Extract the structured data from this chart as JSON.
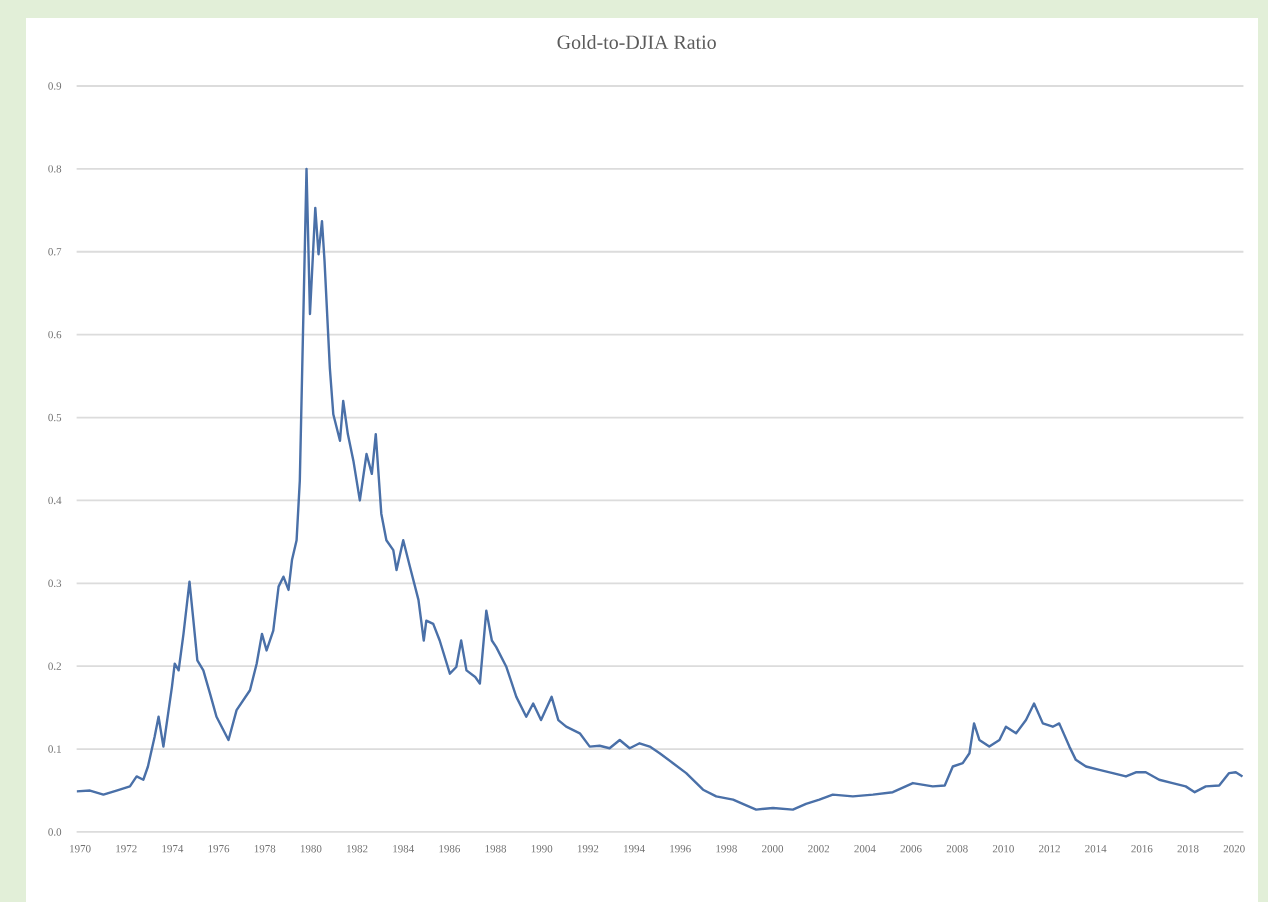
{
  "chart_data": {
    "type": "line",
    "title": "Gold-to-DJIA Ratio",
    "color": "#4a70a8",
    "grid": "y",
    "xlim": [
      1969.85,
      2020.4
    ],
    "ylim": [
      0,
      0.9
    ],
    "xticks": [
      1970,
      1972,
      1974,
      1976,
      1978,
      1980,
      1982,
      1984,
      1986,
      1988,
      1990,
      1992,
      1994,
      1996,
      1998,
      2000,
      2002,
      2004,
      2006,
      2008,
      2010,
      2012,
      2014,
      2016,
      2018,
      2020
    ],
    "yticks": [
      {
        "value": 0,
        "label": "0.0"
      },
      0.1,
      0.2,
      0.3,
      0.4,
      0.5,
      0.6,
      0.7,
      0.8,
      0.9
    ],
    "x": [
      1969.85,
      1970.43,
      1971.01,
      1971.58,
      1972.16,
      1972.45,
      1972.74,
      1972.94,
      1973.23,
      1973.4,
      1973.61,
      1973.98,
      1974.1,
      1974.27,
      1974.48,
      1974.74,
      1974.91,
      1975.08,
      1975.34,
      1975.63,
      1975.91,
      1976.43,
      1976.78,
      1977.07,
      1977.36,
      1977.65,
      1977.88,
      1978.08,
      1978.37,
      1978.6,
      1978.81,
      1979.03,
      1979.18,
      1979.38,
      1979.52,
      1979.81,
      1979.96,
      1980.19,
      1980.33,
      1980.48,
      1980.59,
      1980.82,
      1980.97,
      1981.26,
      1981.4,
      1981.6,
      1981.84,
      1982.12,
      1982.41,
      1982.64,
      1982.81,
      1983.05,
      1983.27,
      1983.57,
      1983.71,
      1984.0,
      1984.29,
      1984.66,
      1984.89,
      1985.0,
      1985.3,
      1985.58,
      1986.02,
      1986.3,
      1986.51,
      1986.74,
      1987.12,
      1987.32,
      1987.6,
      1987.84,
      1988.03,
      1988.47,
      1988.9,
      1989.33,
      1989.63,
      1989.97,
      1990.43,
      1990.72,
      1991.06,
      1991.65,
      1992.08,
      1992.51,
      1992.94,
      1993.38,
      1993.81,
      1994.24,
      1994.68,
      1995.11,
      1995.69,
      1996.26,
      1996.99,
      1997.56,
      1998.29,
      1998.86,
      1999.29,
      2000.02,
      2000.88,
      2001.45,
      2002.03,
      2002.61,
      2003.48,
      2004.35,
      2005.21,
      2006.08,
      2006.94,
      2007.46,
      2007.81,
      2008.24,
      2008.53,
      2008.73,
      2008.96,
      2009.39,
      2009.83,
      2010.11,
      2010.55,
      2010.98,
      2011.33,
      2011.71,
      2012.14,
      2012.42,
      2012.86,
      2013.14,
      2013.58,
      2014.16,
      2014.74,
      2015.31,
      2015.74,
      2016.17,
      2016.75,
      2017.33,
      2017.9,
      2018.29,
      2018.77,
      2019.35,
      2019.78,
      2020.07,
      2020.36
    ],
    "values": [
      0.049,
      0.05,
      0.045,
      0.05,
      0.055,
      0.067,
      0.063,
      0.079,
      0.115,
      0.139,
      0.103,
      0.175,
      0.203,
      0.195,
      0.239,
      0.302,
      0.255,
      0.207,
      0.195,
      0.167,
      0.139,
      0.111,
      0.147,
      0.159,
      0.171,
      0.203,
      0.239,
      0.219,
      0.243,
      0.296,
      0.308,
      0.292,
      0.328,
      0.352,
      0.424,
      0.8,
      0.625,
      0.753,
      0.697,
      0.737,
      0.689,
      0.56,
      0.504,
      0.472,
      0.52,
      0.48,
      0.448,
      0.4,
      0.456,
      0.432,
      0.48,
      0.384,
      0.352,
      0.34,
      0.316,
      0.352,
      0.32,
      0.28,
      0.231,
      0.255,
      0.251,
      0.231,
      0.191,
      0.199,
      0.231,
      0.195,
      0.187,
      0.179,
      0.267,
      0.231,
      0.223,
      0.199,
      0.163,
      0.139,
      0.155,
      0.135,
      0.163,
      0.135,
      0.127,
      0.119,
      0.103,
      0.104,
      0.101,
      0.111,
      0.101,
      0.107,
      0.103,
      0.095,
      0.083,
      0.071,
      0.051,
      0.043,
      0.039,
      0.032,
      0.027,
      0.029,
      0.027,
      0.034,
      0.039,
      0.045,
      0.043,
      0.045,
      0.048,
      0.059,
      0.055,
      0.056,
      0.079,
      0.083,
      0.095,
      0.131,
      0.111,
      0.103,
      0.111,
      0.127,
      0.119,
      0.135,
      0.155,
      0.131,
      0.127,
      0.131,
      0.103,
      0.087,
      0.079,
      0.075,
      0.071,
      0.067,
      0.072,
      0.072,
      0.063,
      0.059,
      0.055,
      0.048,
      0.055,
      0.056,
      0.071,
      0.072,
      0.067
    ]
  }
}
